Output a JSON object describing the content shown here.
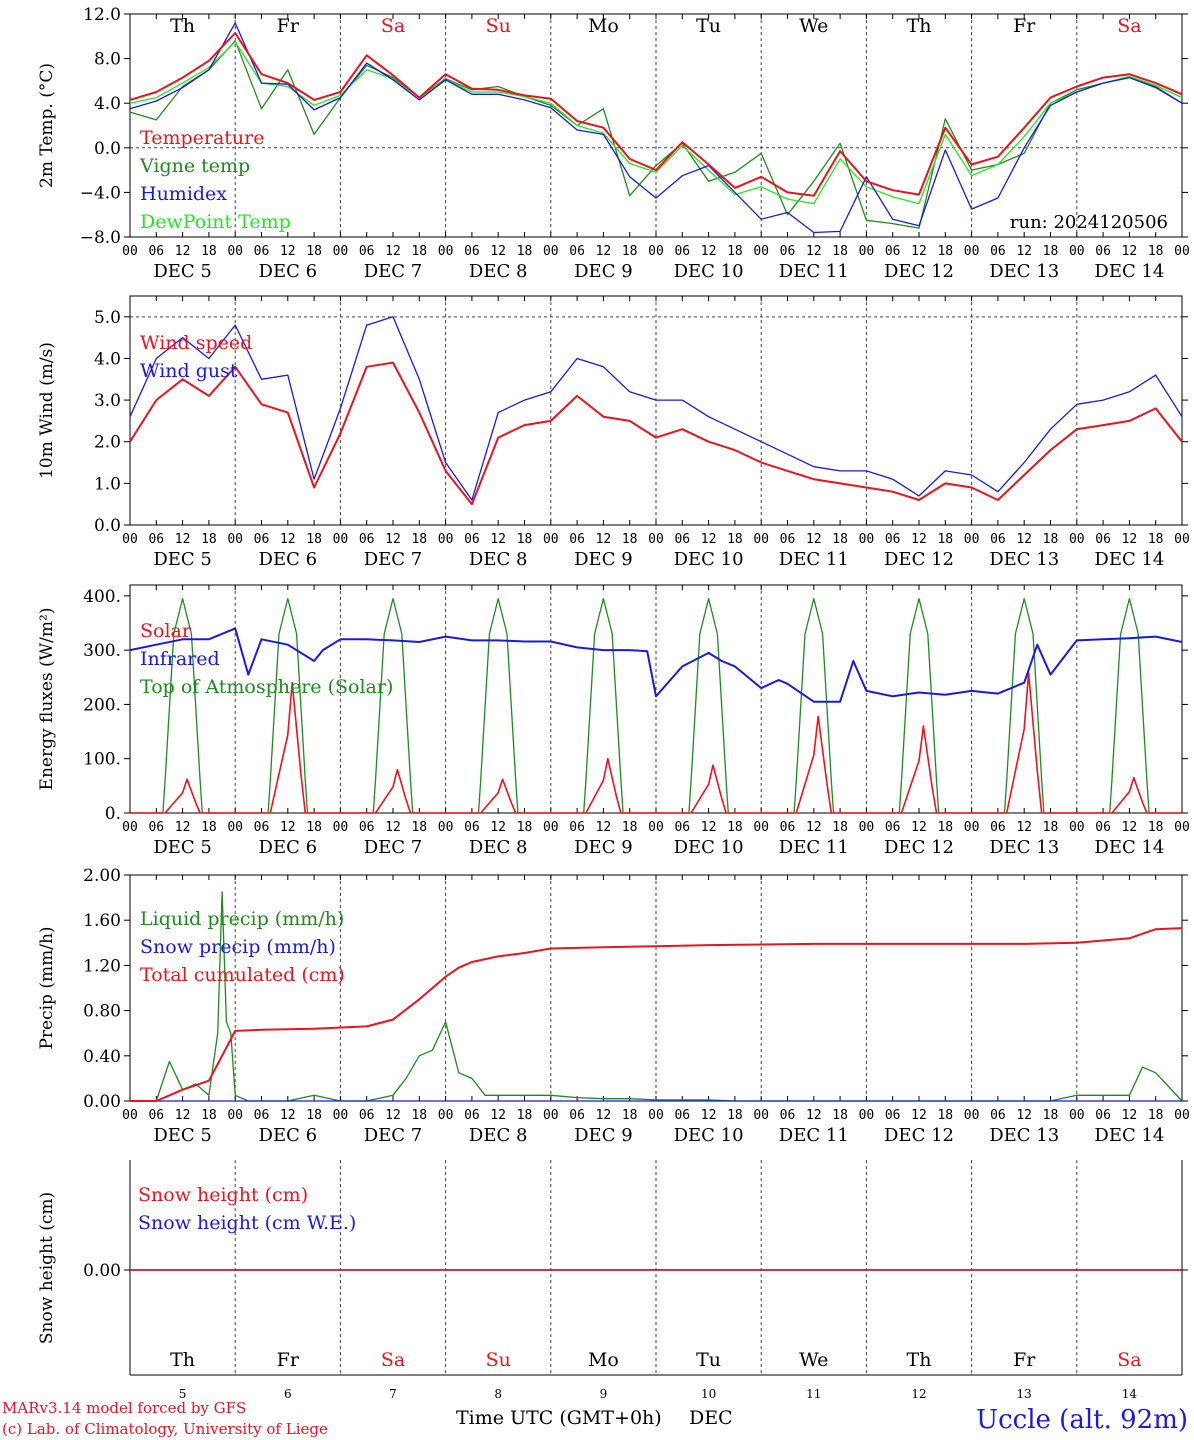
{
  "colors": {
    "red": "#e8141e",
    "green": "#1f8a1f",
    "blue": "#1a1adc",
    "lightgreen": "#22e822",
    "axis": "#000000",
    "grid": "#444444"
  },
  "footer": {
    "model_line": "MARv3.14 model forced by GFS",
    "credit_line": "(c) Lab. of Climatology, University of Liege",
    "xlabel": "Time UTC (GMT+0h)",
    "month": "DEC",
    "station": "Uccle (alt. 92m)"
  },
  "chart_data": [
    {
      "type": "line",
      "id": "temperature",
      "ylabel": "2m Temp. (°C)",
      "ylim": [
        -8,
        12
      ],
      "yticks": [
        "12.0",
        "8.0",
        "4.0",
        "0.0",
        "−4.0",
        "−8.0"
      ],
      "ytick_values": [
        12,
        8,
        4,
        0,
        -4,
        -8
      ],
      "dashed_y": [
        0
      ],
      "run_label": "run: 2024120506",
      "weekday_labels": [
        "Th",
        "Fr",
        "Sa",
        "Su",
        "Mo",
        "Tu",
        "We",
        "Th",
        "Fr",
        "Sa"
      ],
      "weekday_colors": [
        "black",
        "black",
        "red",
        "red",
        "black",
        "black",
        "black",
        "black",
        "black",
        "red"
      ],
      "date_labels": [
        "DEC  5",
        "DEC  6",
        "DEC  7",
        "DEC  8",
        "DEC  9",
        "DEC 10",
        "DEC 11",
        "DEC 12",
        "DEC 13",
        "DEC 14"
      ],
      "hour_labels": [
        "00",
        "06",
        "12",
        "18"
      ],
      "x_unit": "hours from Dec 5 00 UTC",
      "series": [
        {
          "name": "Temperature",
          "color": "red",
          "x": [
            0,
            6,
            12,
            18,
            24,
            30,
            36,
            42,
            48,
            54,
            60,
            66,
            72,
            78,
            84,
            90,
            96,
            102,
            108,
            114,
            120,
            126,
            132,
            138,
            144,
            150,
            156,
            162,
            168,
            174,
            180,
            186,
            192,
            198,
            204,
            210,
            216,
            222,
            228,
            234,
            240
          ],
          "y": [
            4.3,
            5.0,
            6.3,
            7.8,
            10.3,
            6.6,
            5.8,
            4.3,
            5.0,
            8.3,
            6.5,
            4.5,
            6.6,
            5.3,
            5.2,
            4.7,
            4.4,
            2.4,
            1.8,
            -1.0,
            -2.0,
            0.5,
            -1.5,
            -3.6,
            -2.6,
            -4.0,
            -4.3,
            -0.3,
            -3.0,
            -3.8,
            -4.2,
            1.8,
            -1.5,
            -0.8,
            1.8,
            4.5,
            5.5,
            6.3,
            6.6,
            5.8,
            4.8
          ]
        },
        {
          "name": "Vigne temp",
          "color": "green",
          "x": [
            0,
            6,
            12,
            18,
            24,
            30,
            36,
            42,
            48,
            54,
            60,
            66,
            72,
            78,
            84,
            90,
            96,
            102,
            108,
            114,
            120,
            126,
            132,
            138,
            144,
            150,
            156,
            162,
            168,
            174,
            180,
            186,
            192,
            198,
            204,
            210,
            216,
            222,
            228,
            234,
            240
          ],
          "y": [
            3.2,
            2.5,
            5.5,
            7.0,
            9.6,
            3.5,
            7.0,
            1.2,
            4.5,
            7.4,
            6.3,
            4.5,
            6.2,
            5.2,
            5.5,
            4.6,
            3.8,
            2.0,
            3.5,
            -4.3,
            -1.6,
            0.4,
            -3.0,
            -2.2,
            -0.5,
            -6.0,
            -3.0,
            0.4,
            -6.5,
            -6.8,
            -7.2,
            2.6,
            -2.0,
            -1.5,
            -0.5,
            4.0,
            5.2,
            5.8,
            6.3,
            5.5,
            4.0
          ]
        },
        {
          "name": "Humidex",
          "color": "blue",
          "x": [
            0,
            6,
            12,
            18,
            24,
            30,
            36,
            42,
            48,
            54,
            60,
            66,
            72,
            78,
            84,
            90,
            96,
            102,
            108,
            114,
            120,
            126,
            132,
            138,
            144,
            150,
            156,
            162,
            168,
            174,
            180,
            186,
            192,
            198,
            204,
            210,
            216,
            222,
            228,
            234,
            240
          ],
          "y": [
            3.5,
            4.2,
            5.4,
            7.0,
            11.2,
            5.8,
            5.7,
            3.4,
            4.5,
            7.6,
            6.1,
            4.3,
            6.1,
            4.8,
            4.8,
            4.3,
            3.6,
            1.6,
            1.2,
            -2.6,
            -4.5,
            -2.5,
            -1.6,
            -4.0,
            -6.4,
            -5.8,
            -7.6,
            -7.5,
            -2.6,
            -6.4,
            -7.0,
            -0.2,
            -5.5,
            -4.5,
            0.0,
            3.8,
            5.0,
            5.8,
            6.3,
            5.4,
            4.0
          ]
        },
        {
          "name": "DewPoint Temp",
          "color": "lightgreen",
          "x": [
            0,
            6,
            12,
            18,
            24,
            30,
            36,
            42,
            48,
            54,
            60,
            66,
            72,
            78,
            84,
            90,
            96,
            102,
            108,
            114,
            120,
            126,
            132,
            138,
            144,
            150,
            156,
            162,
            168,
            174,
            180,
            186,
            192,
            198,
            204,
            210,
            216,
            222,
            228,
            234,
            240
          ],
          "y": [
            4.0,
            4.5,
            5.8,
            7.2,
            9.5,
            5.8,
            5.5,
            3.8,
            4.7,
            7.0,
            6.2,
            4.5,
            6.1,
            5.0,
            5.0,
            4.6,
            4.0,
            2.0,
            1.3,
            -1.4,
            -2.2,
            0.2,
            -2.0,
            -4.2,
            -3.5,
            -4.6,
            -5.0,
            -1.0,
            -3.5,
            -4.4,
            -5.0,
            1.2,
            -2.5,
            -1.5,
            1.0,
            4.0,
            5.0,
            5.8,
            6.4,
            5.6,
            4.5
          ]
        }
      ]
    },
    {
      "type": "line",
      "id": "wind",
      "ylabel": "10m Wind (m/s)",
      "ylim": [
        0,
        5.5
      ],
      "yticks": [
        "5.0",
        "4.0",
        "3.0",
        "2.0",
        "1.0",
        "0.0"
      ],
      "ytick_values": [
        5,
        4,
        3,
        2,
        1,
        0
      ],
      "dashed_y": [
        5
      ],
      "date_labels": [
        "DEC  5",
        "DEC  6",
        "DEC  7",
        "DEC  8",
        "DEC  9",
        "DEC 10",
        "DEC 11",
        "DEC 12",
        "DEC 13",
        "DEC 14"
      ],
      "hour_labels": [
        "00",
        "06",
        "12",
        "18"
      ],
      "series": [
        {
          "name": "Wind speed",
          "color": "red",
          "x": [
            0,
            6,
            12,
            18,
            24,
            30,
            36,
            42,
            48,
            54,
            60,
            66,
            72,
            78,
            84,
            90,
            96,
            102,
            108,
            114,
            120,
            126,
            132,
            138,
            144,
            150,
            156,
            162,
            168,
            174,
            180,
            186,
            192,
            198,
            204,
            210,
            216,
            222,
            228,
            234,
            240
          ],
          "y": [
            2.0,
            3.0,
            3.5,
            3.1,
            3.8,
            2.9,
            2.7,
            0.9,
            2.2,
            3.8,
            3.9,
            2.7,
            1.3,
            0.5,
            2.1,
            2.4,
            2.5,
            3.1,
            2.6,
            2.5,
            2.1,
            2.3,
            2.0,
            1.8,
            1.5,
            1.3,
            1.1,
            1.0,
            0.9,
            0.8,
            0.6,
            1.0,
            0.9,
            0.6,
            1.2,
            1.8,
            2.3,
            2.4,
            2.5,
            2.8,
            2.0
          ]
        },
        {
          "name": "Wind gust",
          "color": "blue",
          "x": [
            0,
            6,
            12,
            18,
            24,
            30,
            36,
            42,
            48,
            54,
            60,
            66,
            72,
            78,
            84,
            90,
            96,
            102,
            108,
            114,
            120,
            126,
            132,
            138,
            144,
            150,
            156,
            162,
            168,
            174,
            180,
            186,
            192,
            198,
            204,
            210,
            216,
            222,
            228,
            234,
            240
          ],
          "y": [
            2.6,
            4.0,
            4.5,
            4.0,
            4.8,
            3.5,
            3.6,
            1.1,
            2.8,
            4.8,
            5.0,
            3.5,
            1.5,
            0.6,
            2.7,
            3.0,
            3.2,
            4.0,
            3.8,
            3.2,
            3.0,
            3.0,
            2.6,
            2.3,
            2.0,
            1.7,
            1.4,
            1.3,
            1.3,
            1.1,
            0.7,
            1.3,
            1.2,
            0.8,
            1.5,
            2.3,
            2.9,
            3.0,
            3.2,
            3.6,
            2.6
          ]
        }
      ]
    },
    {
      "type": "line",
      "id": "energy",
      "ylabel": "Energy fluxes (W/m²)",
      "ylim": [
        0,
        420
      ],
      "yticks": [
        "400.",
        "300.",
        "200.",
        "100.",
        "0."
      ],
      "ytick_values": [
        400,
        300,
        200,
        100,
        0
      ],
      "date_labels": [
        "DEC  5",
        "DEC  6",
        "DEC  7",
        "DEC  8",
        "DEC  9",
        "DEC 10",
        "DEC 11",
        "DEC 12",
        "DEC 13",
        "DEC 14"
      ],
      "hour_labels": [
        "00",
        "06",
        "12",
        "18"
      ],
      "toa_peak": 395,
      "solar_daily_peaks": [
        62,
        240,
        80,
        62,
        100,
        88,
        178,
        160,
        258,
        65
      ],
      "series": [
        {
          "name": "Solar",
          "color": "red"
        },
        {
          "name": "Infrared",
          "color": "blue",
          "x": [
            0,
            6,
            12,
            18,
            24,
            27,
            30,
            36,
            42,
            44,
            48,
            54,
            60,
            66,
            72,
            78,
            84,
            90,
            96,
            102,
            108,
            114,
            118,
            120,
            126,
            132,
            135,
            138,
            144,
            148,
            150,
            156,
            162,
            165,
            168,
            174,
            180,
            186,
            192,
            198,
            204,
            207,
            210,
            216,
            222,
            228,
            234,
            240
          ],
          "y": [
            300,
            310,
            320,
            320,
            340,
            255,
            320,
            310,
            280,
            300,
            320,
            320,
            318,
            315,
            325,
            318,
            318,
            316,
            316,
            305,
            300,
            300,
            298,
            215,
            270,
            295,
            280,
            270,
            230,
            245,
            238,
            205,
            205,
            280,
            225,
            215,
            222,
            218,
            225,
            220,
            240,
            310,
            255,
            318,
            320,
            322,
            325,
            315
          ]
        },
        {
          "name": "Top of Atmosphere (Solar)",
          "color": "green"
        }
      ]
    },
    {
      "type": "line",
      "id": "precip",
      "ylabel": "Precip (mm/h)",
      "ylim": [
        0,
        2.0
      ],
      "yticks": [
        "2.00",
        "1.60",
        "1.20",
        "0.80",
        "0.40",
        "0.00"
      ],
      "ytick_values": [
        2.0,
        1.6,
        1.2,
        0.8,
        0.4,
        0.0
      ],
      "date_labels": [
        "DEC  5",
        "DEC  6",
        "DEC  7",
        "DEC  8",
        "DEC  9",
        "DEC 10",
        "DEC 11",
        "DEC 12",
        "DEC 13",
        "DEC 14"
      ],
      "hour_labels": [
        "00",
        "06",
        "12",
        "18"
      ],
      "series": [
        {
          "name": "Liquid precip (mm/h)",
          "color": "green",
          "x": [
            0,
            6,
            9,
            12,
            15,
            18,
            20,
            21,
            22,
            23,
            24,
            27,
            30,
            36,
            42,
            48,
            54,
            60,
            63,
            66,
            69,
            72,
            75,
            78,
            81,
            84,
            90,
            96,
            102,
            108,
            114,
            120,
            126,
            132,
            138,
            144,
            180,
            204,
            210,
            216,
            222,
            228,
            231,
            234,
            240
          ],
          "y": [
            0,
            0,
            0.35,
            0.1,
            0.15,
            0.05,
            0.6,
            1.85,
            0.7,
            0.6,
            0.05,
            0,
            0,
            0,
            0.05,
            0,
            0,
            0.05,
            0.2,
            0.4,
            0.45,
            0.7,
            0.25,
            0.2,
            0.05,
            0.05,
            0.05,
            0.05,
            0.03,
            0.02,
            0.02,
            0.01,
            0.01,
            0.01,
            0,
            0,
            0,
            0,
            0,
            0.05,
            0.05,
            0.05,
            0.3,
            0.25,
            0
          ]
        },
        {
          "name": "Snow precip (mm/h)",
          "color": "blue",
          "x": [
            0,
            240
          ],
          "y": [
            0,
            0
          ]
        },
        {
          "name": "Total cumulated (cm)",
          "color": "red",
          "x": [
            0,
            6,
            12,
            18,
            21,
            24,
            30,
            42,
            54,
            60,
            66,
            72,
            75,
            78,
            84,
            90,
            96,
            108,
            120,
            132,
            156,
            180,
            204,
            216,
            228,
            234,
            240
          ],
          "y": [
            0,
            0,
            0.1,
            0.18,
            0.4,
            0.62,
            0.63,
            0.64,
            0.66,
            0.72,
            0.9,
            1.1,
            1.18,
            1.23,
            1.28,
            1.31,
            1.35,
            1.36,
            1.37,
            1.38,
            1.39,
            1.39,
            1.39,
            1.4,
            1.44,
            1.52,
            1.53
          ]
        }
      ]
    },
    {
      "type": "line",
      "id": "snow",
      "ylabel": "Snow height (cm)",
      "yticks": [
        "0.00"
      ],
      "weekday_labels": [
        "Th",
        "Fr",
        "Sa",
        "Su",
        "Mo",
        "Tu",
        "We",
        "Th",
        "Fr",
        "Sa"
      ],
      "weekday_colors": [
        "black",
        "black",
        "red",
        "red",
        "black",
        "black",
        "black",
        "black",
        "black",
        "red"
      ],
      "day_numbers": [
        "5",
        "6",
        "7",
        "8",
        "9",
        "10",
        "11",
        "12",
        "13",
        "14"
      ],
      "series": [
        {
          "name": "Snow height (cm)",
          "color": "red",
          "x": [
            0,
            240
          ],
          "y": [
            0,
            0
          ]
        },
        {
          "name": "Snow height (cm W.E.)",
          "color": "blue",
          "x": [
            0,
            240
          ],
          "y": [
            0,
            0
          ]
        }
      ]
    }
  ]
}
